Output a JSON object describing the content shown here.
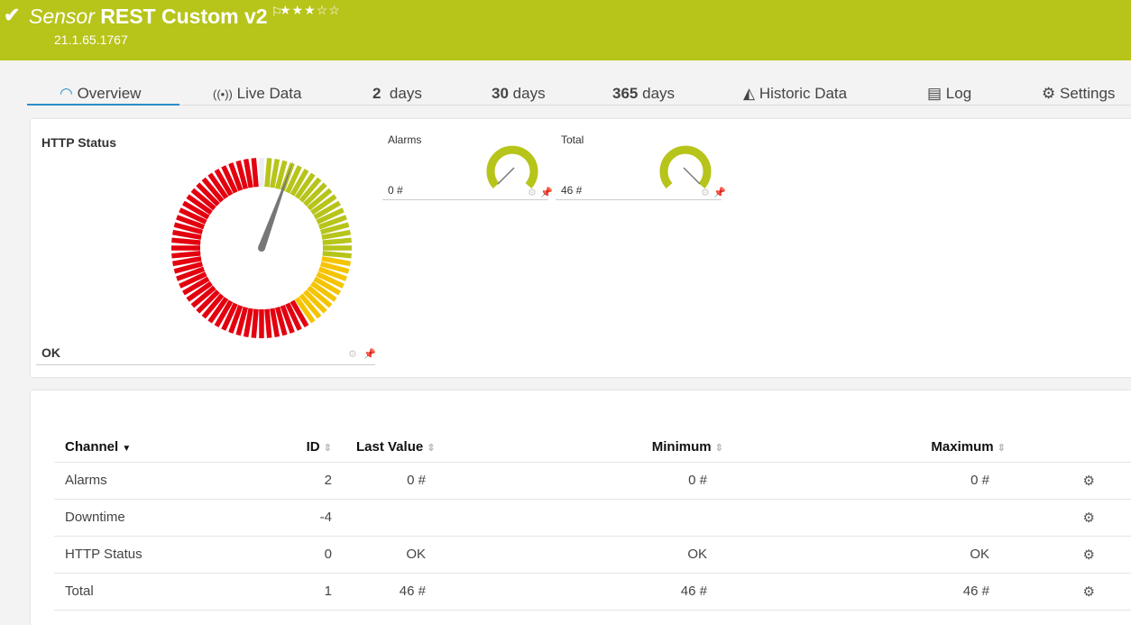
{
  "header": {
    "status_icon": "check-icon",
    "type_label": "Sensor",
    "name": "REST Custom v2",
    "flag_icon": "flag-icon",
    "stars": "★★★☆☆",
    "priority": 3,
    "version": "21.1.65.1767",
    "color": "#b7c41a"
  },
  "tabs": [
    {
      "label": "Overview",
      "icon": "gauge-icon"
    },
    {
      "label": "Live Data",
      "icon": "broadcast-icon"
    },
    {
      "num": "2",
      "label": "days"
    },
    {
      "num": "30",
      "label": "days"
    },
    {
      "num": "365",
      "label": "days"
    },
    {
      "label": "Historic Data",
      "icon": "area-chart-icon"
    },
    {
      "label": "Log",
      "icon": "list-icon"
    },
    {
      "label": "Settings",
      "icon": "gear-icon"
    }
  ],
  "gauges": {
    "main": {
      "title": "HTTP Status",
      "value": "OK"
    },
    "alarms": {
      "title": "Alarms",
      "value": "0 #"
    },
    "total": {
      "title": "Total",
      "value": "46 #"
    }
  },
  "table": {
    "headers": [
      "Channel",
      "ID",
      "Last Value",
      "Minimum",
      "Maximum"
    ],
    "rows": [
      [
        "Alarms",
        "2",
        "0 #",
        "0 #",
        "0 #"
      ],
      [
        "Downtime",
        "-4",
        "",
        "",
        ""
      ],
      [
        "HTTP Status",
        "0",
        "OK",
        "OK",
        "OK"
      ],
      [
        "Total",
        "1",
        "46 #",
        "46 #",
        "46 #"
      ]
    ]
  }
}
